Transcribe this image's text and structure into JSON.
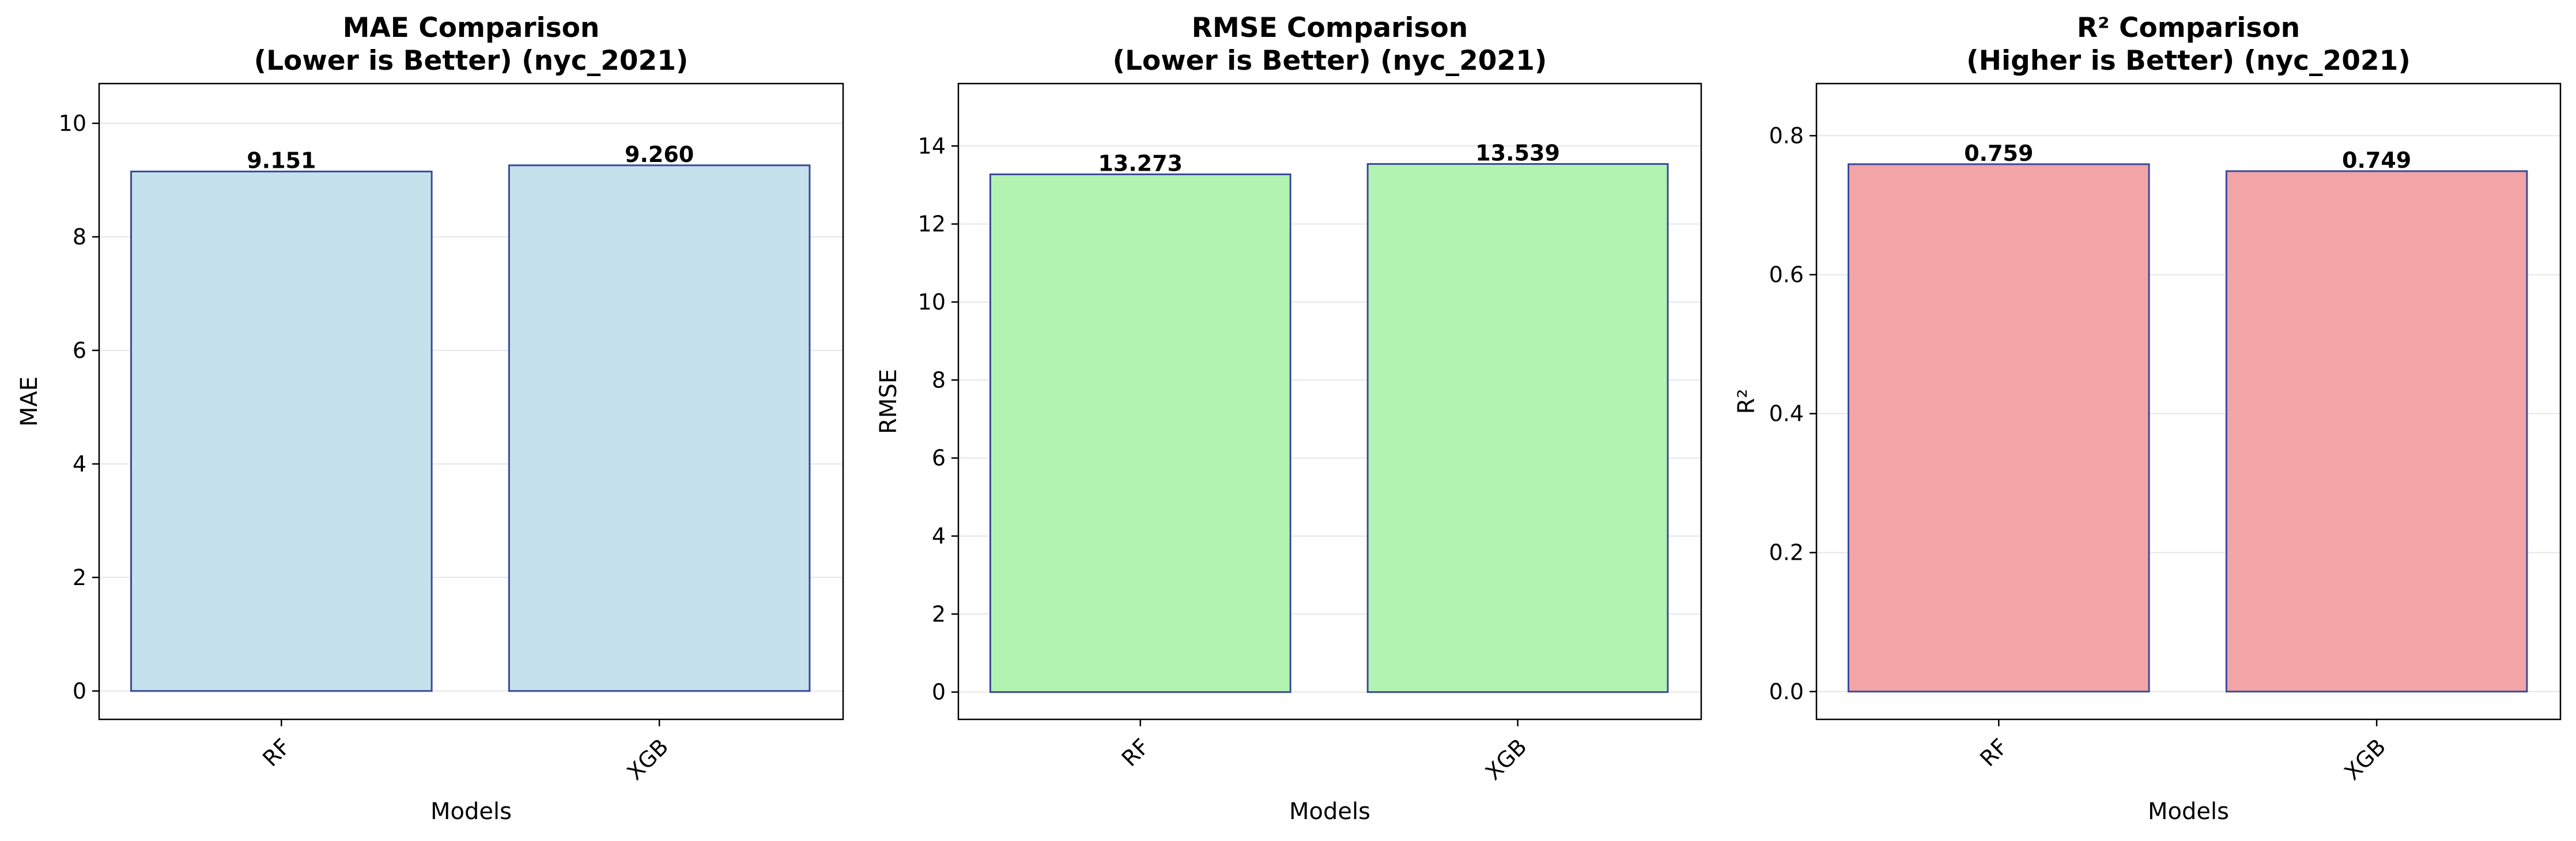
{
  "chart_data": [
    {
      "type": "bar",
      "title": [
        "MAE Comparison",
        "(Lower is Better) (nyc_2021)"
      ],
      "xlabel": "Models",
      "ylabel": "MAE",
      "categories": [
        "RF",
        "XGB"
      ],
      "values": [
        9.151,
        9.26
      ],
      "value_labels": [
        "9.151",
        "9.260"
      ],
      "ylim": [
        -0.5,
        10.7
      ],
      "yticks": [
        0,
        2,
        4,
        6,
        8,
        10
      ],
      "ytick_labels": [
        "0",
        "2",
        "4",
        "6",
        "8",
        "10"
      ],
      "grid": "y",
      "bar_color": "#c5e1ec",
      "edge_color": "#3a4a9a"
    },
    {
      "type": "bar",
      "title": [
        "RMSE Comparison",
        "(Lower is Better) (nyc_2021)"
      ],
      "xlabel": "Models",
      "ylabel": "RMSE",
      "categories": [
        "RF",
        "XGB"
      ],
      "values": [
        13.273,
        13.539
      ],
      "value_labels": [
        "13.273",
        "13.539"
      ],
      "ylim": [
        -0.7,
        15.6
      ],
      "yticks": [
        0,
        2,
        4,
        6,
        8,
        10,
        12,
        14
      ],
      "ytick_labels": [
        "0",
        "2",
        "4",
        "6",
        "8",
        "10",
        "12",
        "14"
      ],
      "grid": "y",
      "bar_color": "#b2f3b1",
      "edge_color": "#3a4a9a"
    },
    {
      "type": "bar",
      "title": [
        "R² Comparison",
        "(Higher is Better) (nyc_2021)"
      ],
      "xlabel": "Models",
      "ylabel": "R²",
      "categories": [
        "RF",
        "XGB"
      ],
      "values": [
        0.759,
        0.749
      ],
      "value_labels": [
        "0.759",
        "0.749"
      ],
      "ylim": [
        -0.04,
        0.875
      ],
      "yticks": [
        0.0,
        0.2,
        0.4,
        0.6,
        0.8
      ],
      "ytick_labels": [
        "0.0",
        "0.2",
        "0.4",
        "0.6",
        "0.8"
      ],
      "grid": "y",
      "bar_color": "#f2a4a6",
      "edge_color": "#3a4a9a"
    }
  ]
}
